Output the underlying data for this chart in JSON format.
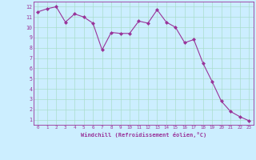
{
  "x": [
    0,
    1,
    2,
    3,
    4,
    5,
    6,
    7,
    8,
    9,
    10,
    11,
    12,
    13,
    14,
    15,
    16,
    17,
    18,
    19,
    20,
    21,
    22,
    23
  ],
  "y": [
    11.5,
    11.8,
    12.0,
    10.5,
    11.3,
    11.0,
    10.4,
    7.8,
    9.5,
    9.4,
    9.4,
    10.6,
    10.4,
    11.7,
    10.5,
    10.0,
    8.5,
    8.8,
    6.5,
    4.7,
    2.8,
    1.8,
    1.3,
    0.9
  ],
  "line_color": "#993399",
  "marker_color": "#993399",
  "bg_color": "#cceeff",
  "grid_color": "#aaddcc",
  "xlabel": "Windchill (Refroidissement éolien,°C)",
  "xlim": [
    -0.5,
    23.5
  ],
  "ylim": [
    0.5,
    12.5
  ],
  "yticks": [
    1,
    2,
    3,
    4,
    5,
    6,
    7,
    8,
    9,
    10,
    11,
    12
  ],
  "xticks": [
    0,
    1,
    2,
    3,
    4,
    5,
    6,
    7,
    8,
    9,
    10,
    11,
    12,
    13,
    14,
    15,
    16,
    17,
    18,
    19,
    20,
    21,
    22,
    23
  ],
  "figsize": [
    3.2,
    2.0
  ],
  "dpi": 100
}
